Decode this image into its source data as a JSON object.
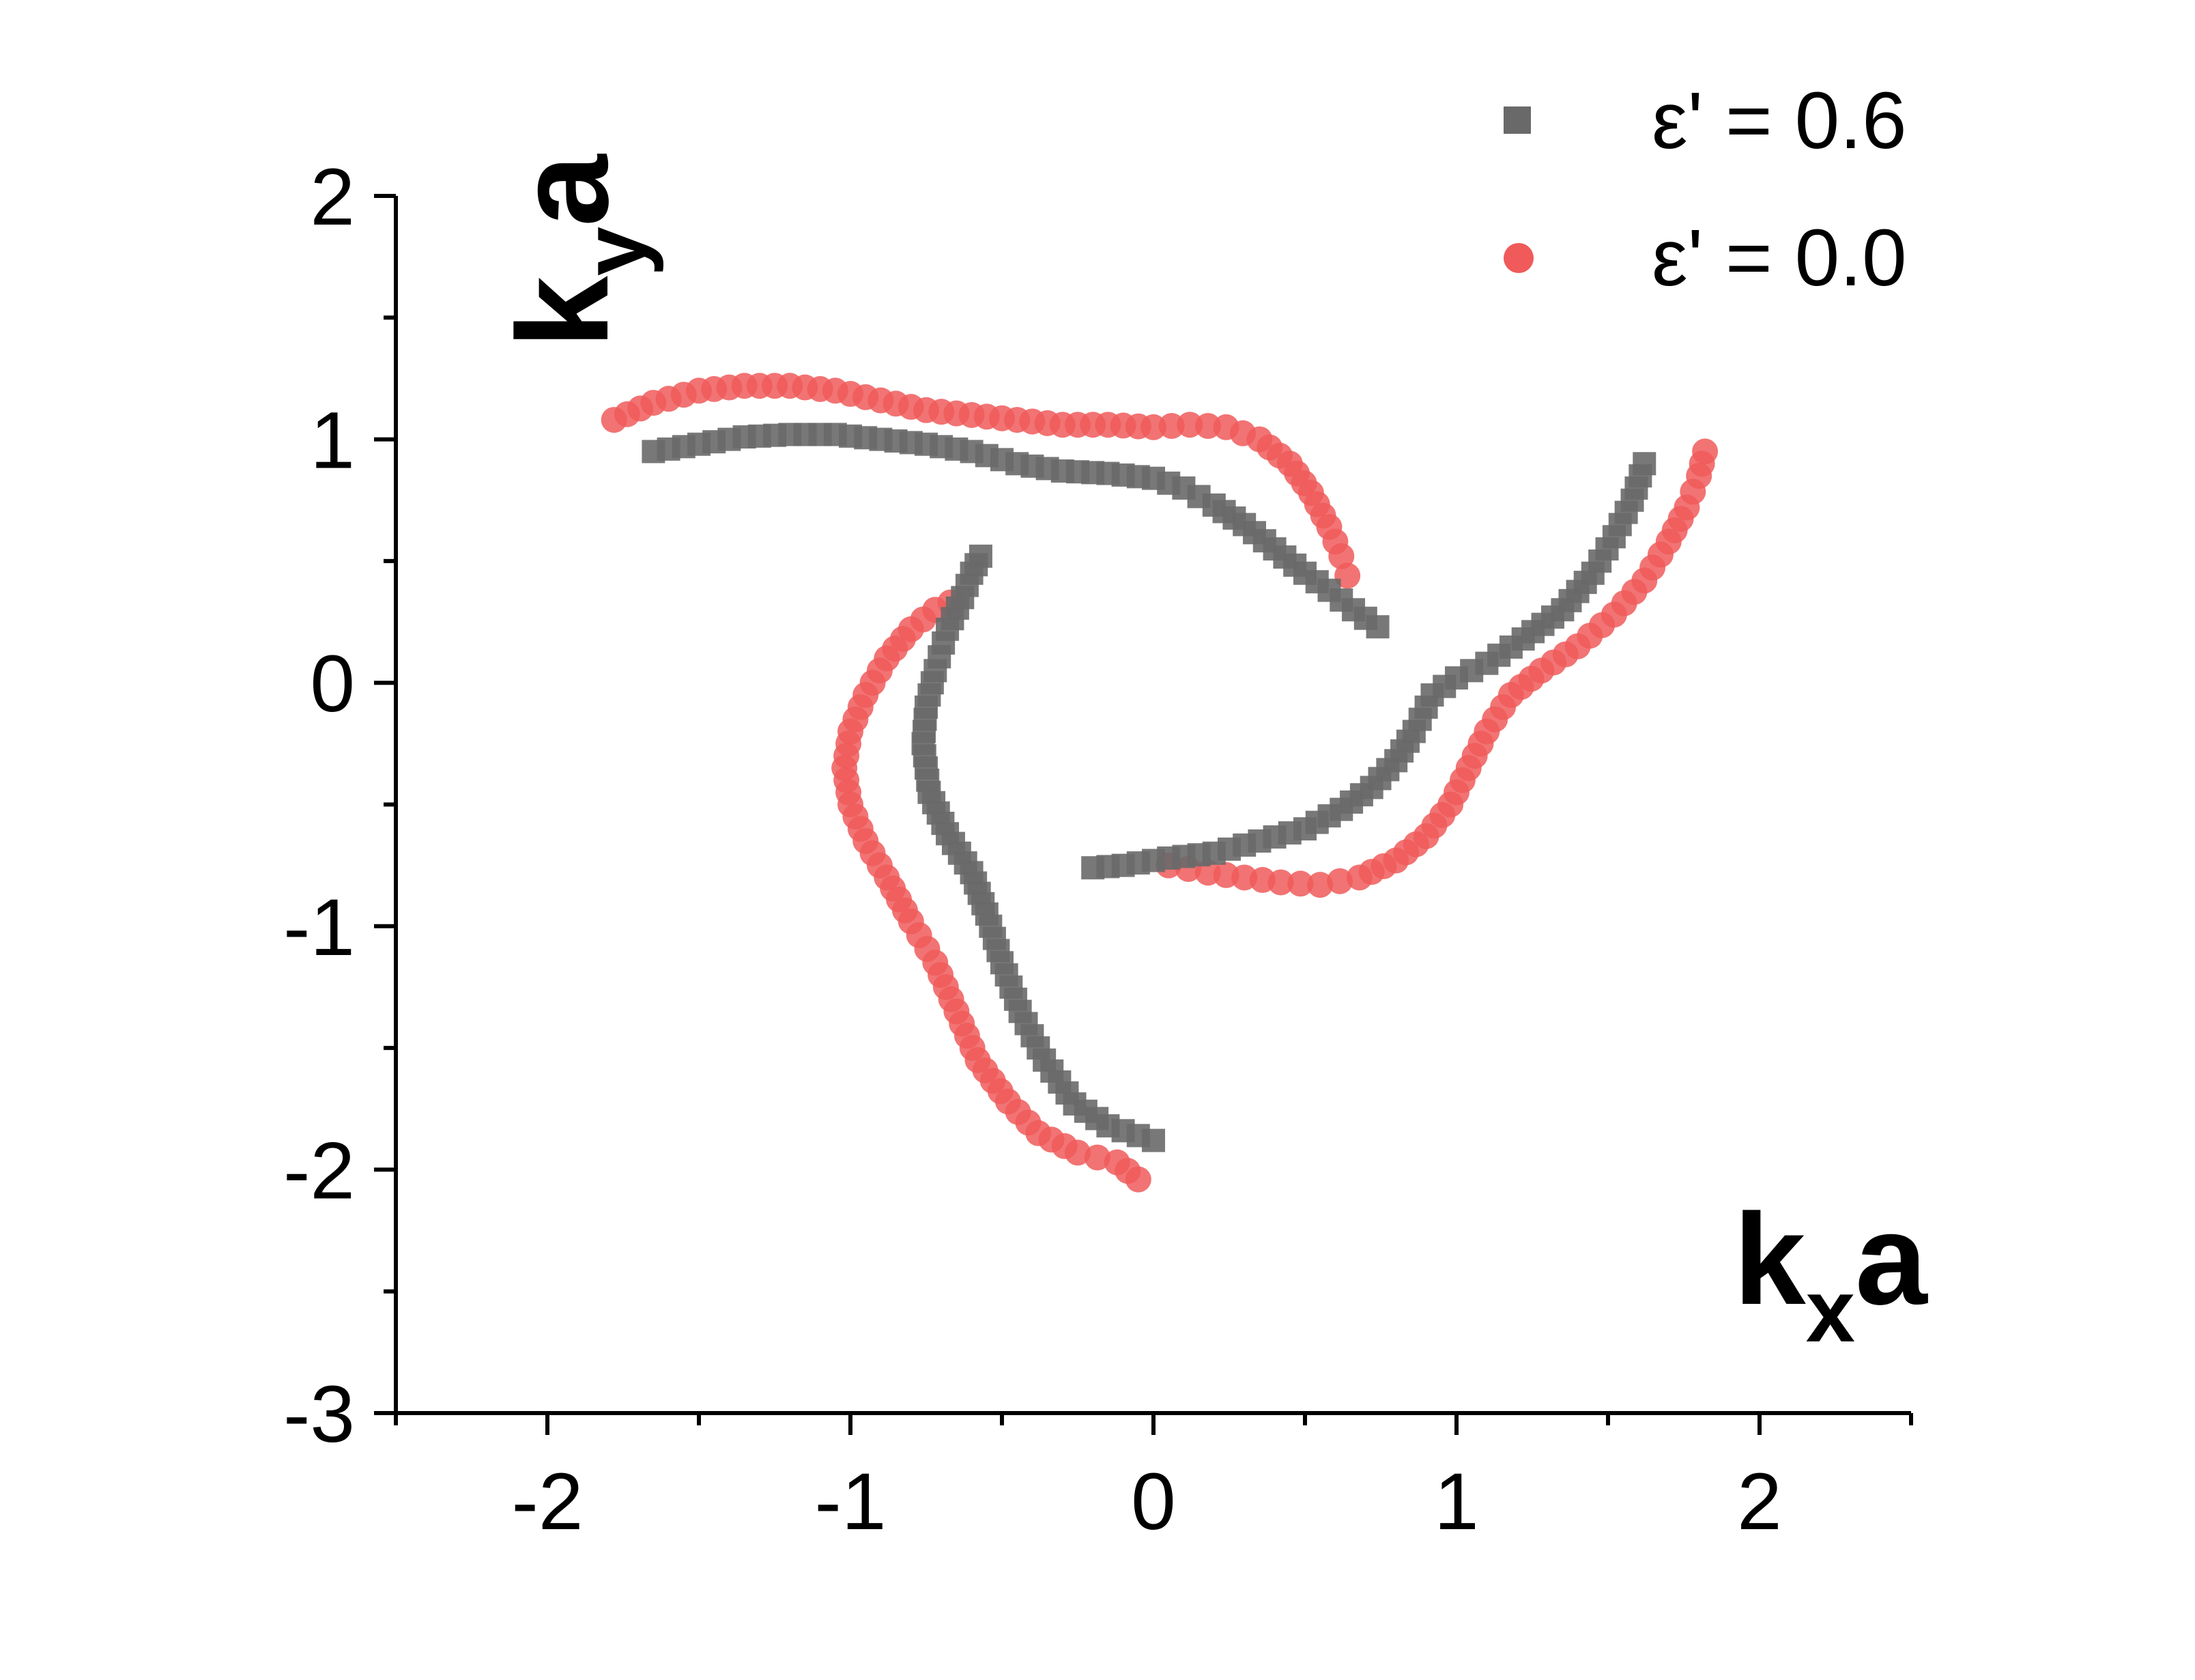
{
  "chart_data": {
    "type": "scatter",
    "xlabel": "k",
    "xlabel_sub": "x",
    "xlabel_suffix": "a",
    "ylabel": "k",
    "ylabel_sub": "y",
    "ylabel_suffix": "a",
    "xlim": [
      -2.5,
      2.5
    ],
    "ylim": [
      -3,
      2
    ],
    "xticks": [
      -2,
      -1,
      0,
      1,
      2
    ],
    "xtick_labels": [
      "-2",
      "-1",
      "0",
      "1",
      "2"
    ],
    "yticks": [
      -3,
      -2,
      -1,
      0,
      1,
      2
    ],
    "ytick_labels": [
      "-3",
      "-2",
      "-1",
      "0",
      "1",
      "2"
    ],
    "grid": false,
    "legend_position": "top-right",
    "series": [
      {
        "name": "ε' = 0.6",
        "marker": "square",
        "color": "#696969",
        "arms": [
          [
            [
              -1.65,
              0.95
            ],
            [
              -1.5,
              0.98
            ],
            [
              -1.35,
              1.01
            ],
            [
              -1.2,
              1.02
            ],
            [
              -1.05,
              1.02
            ],
            [
              -0.9,
              1.0
            ],
            [
              -0.75,
              0.98
            ],
            [
              -0.6,
              0.95
            ],
            [
              -0.45,
              0.9
            ],
            [
              -0.3,
              0.87
            ],
            [
              -0.15,
              0.86
            ],
            [
              0.0,
              0.84
            ],
            [
              0.1,
              0.8
            ],
            [
              0.2,
              0.73
            ],
            [
              0.3,
              0.65
            ],
            [
              0.4,
              0.55
            ],
            [
              0.5,
              0.45
            ],
            [
              0.58,
              0.38
            ],
            [
              0.66,
              0.3
            ],
            [
              0.74,
              0.23
            ]
          ],
          [
            [
              -0.57,
              0.52
            ],
            [
              -0.6,
              0.45
            ],
            [
              -0.63,
              0.35
            ],
            [
              -0.68,
              0.22
            ],
            [
              -0.72,
              0.05
            ],
            [
              -0.75,
              -0.1
            ],
            [
              -0.76,
              -0.25
            ],
            [
              -0.74,
              -0.45
            ],
            [
              -0.68,
              -0.62
            ],
            [
              -0.6,
              -0.78
            ],
            [
              -0.55,
              -0.95
            ],
            [
              -0.5,
              -1.15
            ],
            [
              -0.44,
              -1.35
            ],
            [
              -0.36,
              -1.55
            ],
            [
              -0.26,
              -1.73
            ],
            [
              -0.15,
              -1.82
            ],
            [
              0.0,
              -1.88
            ]
          ],
          [
            [
              -0.2,
              -0.76
            ],
            [
              -0.1,
              -0.75
            ],
            [
              0.05,
              -0.72
            ],
            [
              0.2,
              -0.7
            ],
            [
              0.35,
              -0.65
            ],
            [
              0.5,
              -0.6
            ],
            [
              0.62,
              -0.52
            ],
            [
              0.72,
              -0.43
            ],
            [
              0.8,
              -0.32
            ],
            [
              0.86,
              -0.2
            ],
            [
              0.92,
              -0.05
            ],
            [
              1.0,
              0.02
            ],
            [
              1.1,
              0.08
            ],
            [
              1.22,
              0.18
            ],
            [
              1.35,
              0.3
            ],
            [
              1.45,
              0.45
            ],
            [
              1.52,
              0.6
            ],
            [
              1.58,
              0.75
            ],
            [
              1.62,
              0.9
            ]
          ]
        ]
      },
      {
        "name": "ε' = 0.0",
        "marker": "circle",
        "color": "#f05a5a",
        "arms": [
          [
            [
              -1.78,
              1.08
            ],
            [
              -1.65,
              1.15
            ],
            [
              -1.5,
              1.2
            ],
            [
              -1.35,
              1.22
            ],
            [
              -1.2,
              1.22
            ],
            [
              -1.05,
              1.2
            ],
            [
              -0.9,
              1.16
            ],
            [
              -0.75,
              1.12
            ],
            [
              -0.6,
              1.1
            ],
            [
              -0.45,
              1.08
            ],
            [
              -0.3,
              1.06
            ],
            [
              -0.15,
              1.06
            ],
            [
              0.0,
              1.05
            ],
            [
              0.12,
              1.06
            ],
            [
              0.24,
              1.05
            ],
            [
              0.35,
              1.0
            ],
            [
              0.45,
              0.9
            ],
            [
              0.52,
              0.78
            ],
            [
              0.58,
              0.64
            ],
            [
              0.62,
              0.52
            ],
            [
              0.64,
              0.44
            ]
          ],
          [
            [
              -0.67,
              0.33
            ],
            [
              -0.72,
              0.3
            ],
            [
              -0.8,
              0.22
            ],
            [
              -0.88,
              0.1
            ],
            [
              -0.95,
              -0.05
            ],
            [
              -1.0,
              -0.2
            ],
            [
              -1.02,
              -0.35
            ],
            [
              -1.0,
              -0.5
            ],
            [
              -0.95,
              -0.65
            ],
            [
              -0.88,
              -0.8
            ],
            [
              -0.8,
              -0.98
            ],
            [
              -0.72,
              -1.15
            ],
            [
              -0.65,
              -1.35
            ],
            [
              -0.58,
              -1.55
            ],
            [
              -0.48,
              -1.72
            ],
            [
              -0.38,
              -1.85
            ],
            [
              -0.25,
              -1.93
            ],
            [
              -0.12,
              -1.97
            ],
            [
              -0.05,
              -2.04
            ]
          ],
          [
            [
              0.05,
              -0.75
            ],
            [
              0.18,
              -0.78
            ],
            [
              0.3,
              -0.8
            ],
            [
              0.42,
              -0.82
            ],
            [
              0.55,
              -0.83
            ],
            [
              0.68,
              -0.8
            ],
            [
              0.8,
              -0.73
            ],
            [
              0.9,
              -0.63
            ],
            [
              0.98,
              -0.5
            ],
            [
              1.04,
              -0.35
            ],
            [
              1.1,
              -0.2
            ],
            [
              1.18,
              -0.05
            ],
            [
              1.28,
              0.05
            ],
            [
              1.4,
              0.15
            ],
            [
              1.52,
              0.28
            ],
            [
              1.62,
              0.42
            ],
            [
              1.7,
              0.58
            ],
            [
              1.76,
              0.72
            ],
            [
              1.8,
              0.85
            ],
            [
              1.82,
              0.95
            ]
          ]
        ]
      }
    ]
  }
}
